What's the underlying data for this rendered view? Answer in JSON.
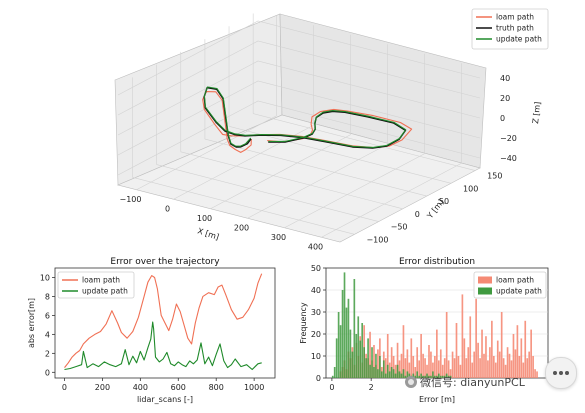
{
  "colors": {
    "loam": "#f07054",
    "truth": "#111111",
    "update": "#1f8a2a",
    "hist_loam": "#f58a74",
    "hist_update": "#3f9a3f",
    "pane": "#ececec",
    "grid": "#d2d2d2"
  },
  "watermark": {
    "icon": "wechat-icon",
    "text": "微信号: dianyunPCL"
  },
  "floating_button": {
    "icon": "more-dots-icon"
  },
  "chart_data": [
    {
      "type": "line",
      "title": "",
      "projection": "3d",
      "xlabel": "X [m]",
      "ylabel": "Y [m]",
      "zlabel": "Z [m]",
      "x_ticks": [
        "400",
        "300",
        "200",
        "100",
        "0",
        "−100"
      ],
      "y_ticks": [
        "−100",
        "−50",
        "0",
        "50",
        "100",
        "150"
      ],
      "z_ticks": [
        "40",
        "20",
        "0",
        "−20",
        "−40"
      ],
      "xlim": [
        -150,
        450
      ],
      "ylim": [
        -130,
        160
      ],
      "zlim": [
        -50,
        50
      ],
      "legend": {
        "placement": "top-right",
        "entries": [
          "loam path",
          "truth path",
          "update path"
        ]
      },
      "series": [
        {
          "name": "loam path",
          "points": [
            [
              175,
              -103,
              20
            ],
            [
              168,
              -98,
              12
            ],
            [
              150,
              -96,
              5
            ],
            [
              140,
              -98,
              2
            ],
            [
              120,
              -94,
              2
            ],
            [
              100,
              -90,
              3
            ],
            [
              80,
              -80,
              5
            ],
            [
              60,
              -70,
              20
            ],
            [
              40,
              -60,
              35
            ],
            [
              10,
              -50,
              38
            ],
            [
              -18,
              -48,
              35
            ],
            [
              -15,
              -58,
              30
            ],
            [
              5,
              -70,
              25
            ],
            [
              60,
              -90,
              20
            ],
            [
              100,
              -105,
              18
            ],
            [
              110,
              -95,
              15
            ],
            [
              120,
              -80,
              12
            ],
            [
              140,
              -60,
              10
            ],
            [
              170,
              -40,
              8
            ],
            [
              210,
              -25,
              6
            ],
            [
              260,
              -15,
              4
            ],
            [
              320,
              -5,
              2
            ],
            [
              360,
              10,
              0
            ],
            [
              375,
              30,
              -2
            ],
            [
              370,
              60,
              -4
            ],
            [
              350,
              95,
              -4
            ],
            [
              300,
              110,
              -6
            ],
            [
              220,
              115,
              -8
            ],
            [
              150,
              115,
              -10
            ],
            [
              120,
              110,
              -10
            ],
            [
              110,
              90,
              -8
            ],
            [
              120,
              65,
              -6
            ],
            [
              150,
              40,
              -4
            ],
            [
              180,
              20,
              -2
            ],
            [
              200,
              0,
              0
            ],
            [
              205,
              -20,
              2
            ],
            [
              190,
              -50,
              5
            ],
            [
              175,
              -70,
              10
            ]
          ]
        },
        {
          "name": "truth path",
          "points": [
            [
              160,
              -92,
              16
            ],
            [
              150,
              -92,
              10
            ],
            [
              135,
              -94,
              6
            ],
            [
              120,
              -92,
              4
            ],
            [
              100,
              -88,
              4
            ],
            [
              80,
              -78,
              8
            ],
            [
              60,
              -68,
              22
            ],
            [
              40,
              -58,
              36
            ],
            [
              10,
              -48,
              40
            ],
            [
              -20,
              -45,
              38
            ],
            [
              -15,
              -55,
              32
            ],
            [
              5,
              -68,
              26
            ],
            [
              60,
              -88,
              22
            ],
            [
              100,
              -100,
              20
            ],
            [
              115,
              -92,
              16
            ],
            [
              125,
              -78,
              12
            ],
            [
              145,
              -60,
              10
            ],
            [
              175,
              -42,
              8
            ],
            [
              215,
              -28,
              6
            ],
            [
              265,
              -18,
              4
            ],
            [
              325,
              -8,
              2
            ],
            [
              358,
              8,
              0
            ],
            [
              370,
              28,
              -2
            ],
            [
              362,
              60,
              -4
            ],
            [
              340,
              90,
              -5
            ],
            [
              290,
              104,
              -6
            ],
            [
              215,
              108,
              -8
            ],
            [
              150,
              110,
              -10
            ],
            [
              125,
              104,
              -10
            ],
            [
              120,
              88,
              -8
            ],
            [
              130,
              66,
              -6
            ],
            [
              155,
              44,
              -4
            ],
            [
              182,
              24,
              -2
            ],
            [
              200,
              4,
              0
            ],
            [
              204,
              -18,
              2
            ],
            [
              192,
              -46,
              4
            ],
            [
              175,
              -68,
              8
            ]
          ]
        },
        {
          "name": "update path",
          "points": [
            [
              150,
              -85,
              14
            ],
            [
              140,
              -88,
              8
            ],
            [
              128,
              -90,
              5
            ],
            [
              115,
              -90,
              4
            ],
            [
              98,
              -86,
              4
            ],
            [
              78,
              -76,
              8
            ],
            [
              58,
              -66,
              22
            ],
            [
              38,
              -56,
              36
            ],
            [
              8,
              -46,
              40
            ],
            [
              -22,
              -43,
              38
            ],
            [
              -17,
              -53,
              32
            ],
            [
              3,
              -66,
              26
            ],
            [
              58,
              -86,
              22
            ],
            [
              98,
              -98,
              20
            ],
            [
              113,
              -90,
              16
            ],
            [
              124,
              -76,
              12
            ],
            [
              144,
              -58,
              10
            ],
            [
              174,
              -40,
              8
            ],
            [
              214,
              -26,
              6
            ],
            [
              264,
              -16,
              4
            ],
            [
              324,
              -6,
              2
            ],
            [
              357,
              10,
              0
            ],
            [
              368,
              30,
              -2
            ],
            [
              360,
              62,
              -4
            ],
            [
              338,
              92,
              -5
            ],
            [
              288,
              106,
              -6
            ],
            [
              213,
              110,
              -8
            ],
            [
              148,
              112,
              -10
            ],
            [
              122,
              106,
              -10
            ],
            [
              117,
              90,
              -8
            ],
            [
              128,
              68,
              -6
            ],
            [
              152,
              46,
              -4
            ],
            [
              180,
              26,
              -2
            ],
            [
              198,
              6,
              0
            ],
            [
              202,
              -16,
              2
            ],
            [
              190,
              -44,
              4
            ],
            [
              173,
              -66,
              8
            ]
          ]
        }
      ]
    },
    {
      "type": "line",
      "title": "Error over the trajectory",
      "xlabel": "lidar_scans [-]",
      "ylabel": "abs error[m]",
      "xlim": [
        -50,
        1110
      ],
      "ylim": [
        -0.6,
        11
      ],
      "x_ticks": [
        0,
        200,
        400,
        600,
        800,
        1000
      ],
      "y_ticks": [
        0,
        2,
        4,
        6,
        8,
        10
      ],
      "grid": false,
      "legend": {
        "placement": "top-left",
        "entries": [
          "loam path",
          "update path"
        ]
      },
      "series": [
        {
          "name": "loam path",
          "x": [
            0,
            20,
            40,
            60,
            80,
            100,
            130,
            160,
            190,
            220,
            250,
            280,
            300,
            330,
            360,
            390,
            420,
            440,
            460,
            475,
            490,
            510,
            530,
            550,
            570,
            590,
            610,
            630,
            650,
            670,
            690,
            710,
            730,
            760,
            790,
            810,
            830,
            850,
            880,
            910,
            940,
            970,
            1000,
            1020,
            1040
          ],
          "y": [
            0.5,
            1.0,
            1.6,
            2.0,
            2.3,
            3.0,
            3.6,
            4.0,
            4.3,
            5.1,
            6.5,
            5.2,
            4.2,
            3.6,
            4.3,
            5.8,
            8.0,
            9.5,
            10.2,
            10.0,
            8.8,
            6.0,
            5.2,
            4.4,
            5.6,
            7.2,
            6.4,
            5.0,
            3.6,
            3.0,
            5.2,
            6.8,
            8.0,
            8.4,
            8.2,
            9.0,
            9.2,
            8.2,
            6.6,
            5.6,
            5.8,
            6.6,
            7.8,
            9.4,
            10.4
          ]
        },
        {
          "name": "update path",
          "x": [
            0,
            30,
            60,
            90,
            100,
            120,
            150,
            180,
            210,
            240,
            270,
            300,
            320,
            340,
            360,
            380,
            400,
            420,
            440,
            455,
            465,
            470,
            480,
            500,
            520,
            540,
            560,
            580,
            600,
            620,
            640,
            660,
            680,
            700,
            720,
            740,
            760,
            780,
            800,
            820,
            840,
            860,
            880,
            900,
            930,
            960,
            990,
            1020,
            1040
          ],
          "y": [
            0.3,
            0.4,
            0.6,
            0.8,
            2.2,
            0.5,
            0.9,
            0.6,
            1.1,
            0.8,
            0.6,
            0.9,
            2.4,
            0.8,
            1.7,
            1.0,
            2.2,
            1.3,
            2.6,
            3.5,
            5.3,
            4.6,
            1.6,
            1.1,
            1.4,
            2.1,
            0.9,
            0.7,
            1.1,
            0.8,
            0.6,
            1.2,
            0.9,
            1.3,
            3.1,
            0.9,
            1.6,
            0.7,
            1.9,
            3.0,
            1.2,
            0.5,
            0.8,
            1.4,
            0.6,
            0.8,
            0.3,
            0.9,
            1.0
          ]
        }
      ]
    },
    {
      "type": "bar",
      "subtype": "histogram",
      "title": "Error distribution",
      "xlabel": "Error [m]",
      "ylabel": "Frequency",
      "xlim": [
        -0.3,
        11
      ],
      "ylim": [
        0,
        50
      ],
      "x_ticks": [
        0,
        2
      ],
      "y_ticks": [
        0,
        10,
        20,
        30,
        40,
        50
      ],
      "grid": true,
      "legend": {
        "placement": "top-right",
        "entries": [
          "loam path",
          "update path"
        ]
      },
      "series": [
        {
          "name": "loam path",
          "bin_width": 0.1,
          "bin_start": 0.4,
          "values": [
            3,
            5,
            8,
            4,
            12,
            9,
            14,
            6,
            16,
            10,
            19,
            7,
            24,
            11,
            9,
            21,
            8,
            15,
            6,
            13,
            18,
            5,
            12,
            9,
            20,
            7,
            14,
            10,
            6,
            16,
            8,
            11,
            24,
            9,
            13,
            7,
            18,
            10,
            5,
            14,
            8,
            20,
            11,
            9,
            6,
            15,
            12,
            7,
            10,
            22,
            8,
            13,
            6,
            9,
            30,
            8,
            4,
            12,
            9,
            25,
            10,
            6,
            38,
            18,
            9,
            14,
            28,
            7,
            12,
            36,
            16,
            9,
            22,
            11,
            19,
            8,
            14,
            26,
            10,
            7,
            17,
            12,
            30,
            9,
            6,
            14,
            11,
            8,
            20,
            13,
            24,
            10,
            18,
            7,
            26,
            9,
            12,
            22,
            10,
            4,
            3
          ]
        },
        {
          "name": "update path",
          "bin_width": 0.1,
          "bin_start": 0.0,
          "values": [
            1,
            5,
            18,
            30,
            24,
            40,
            48,
            32,
            36,
            22,
            12,
            45,
            20,
            28,
            17,
            25,
            14,
            9,
            18,
            6,
            14,
            5,
            11,
            4,
            10,
            3,
            8,
            2,
            6,
            3,
            5,
            4,
            2,
            6,
            3,
            2,
            4,
            1,
            3,
            2,
            1,
            2,
            1,
            3,
            1,
            2,
            1,
            1,
            2,
            1,
            1,
            3,
            1,
            1,
            2,
            1,
            1,
            1,
            2,
            1,
            1
          ]
        }
      ]
    }
  ]
}
